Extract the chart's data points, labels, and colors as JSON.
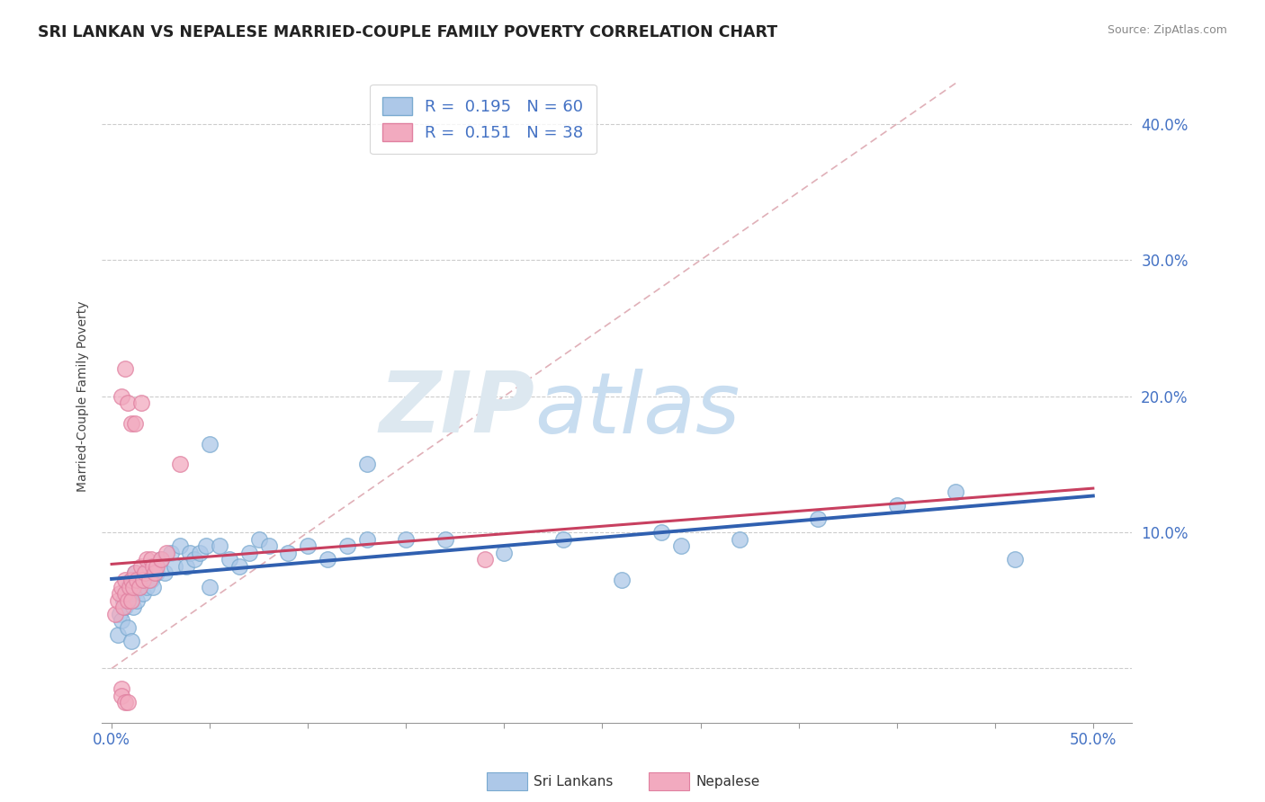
{
  "title": "SRI LANKAN VS NEPALESE MARRIED-COUPLE FAMILY POVERTY CORRELATION CHART",
  "source": "Source: ZipAtlas.com",
  "ylabel": "Married-Couple Family Poverty",
  "xlim": [
    -0.005,
    0.52
  ],
  "ylim": [
    -0.04,
    0.44
  ],
  "yticks": [
    0.0,
    0.1,
    0.2,
    0.3,
    0.4
  ],
  "ytick_labels": [
    "",
    "10.0%",
    "20.0%",
    "30.0%",
    "40.0%"
  ],
  "sri_R": 0.195,
  "sri_N": 60,
  "nep_R": 0.151,
  "nep_N": 38,
  "sri_color": "#adc8e8",
  "nep_color": "#f2aabf",
  "sri_edge_color": "#7aaad0",
  "nep_edge_color": "#e080a0",
  "sri_line_color": "#3060b0",
  "nep_line_color": "#c84060",
  "diag_line_color": "#e0b0b8",
  "watermark_color": "#dde8f0",
  "background_color": "#ffffff",
  "sri_x": [
    0.003,
    0.004,
    0.005,
    0.006,
    0.007,
    0.008,
    0.008,
    0.009,
    0.01,
    0.01,
    0.011,
    0.011,
    0.012,
    0.013,
    0.014,
    0.015,
    0.016,
    0.017,
    0.018,
    0.019,
    0.02,
    0.021,
    0.022,
    0.023,
    0.025,
    0.027,
    0.03,
    0.032,
    0.035,
    0.038,
    0.04,
    0.042,
    0.045,
    0.048,
    0.05,
    0.055,
    0.06,
    0.065,
    0.07,
    0.075,
    0.08,
    0.09,
    0.1,
    0.11,
    0.12,
    0.13,
    0.15,
    0.17,
    0.2,
    0.23,
    0.26,
    0.29,
    0.32,
    0.36,
    0.4,
    0.43,
    0.46,
    0.05,
    0.13,
    0.28
  ],
  "sri_y": [
    0.025,
    0.04,
    0.035,
    0.05,
    0.045,
    0.06,
    0.03,
    0.055,
    0.065,
    0.02,
    0.045,
    0.055,
    0.07,
    0.05,
    0.06,
    0.065,
    0.055,
    0.07,
    0.06,
    0.075,
    0.065,
    0.06,
    0.075,
    0.07,
    0.08,
    0.07,
    0.085,
    0.075,
    0.09,
    0.075,
    0.085,
    0.08,
    0.085,
    0.09,
    0.06,
    0.09,
    0.08,
    0.075,
    0.085,
    0.095,
    0.09,
    0.085,
    0.09,
    0.08,
    0.09,
    0.095,
    0.095,
    0.095,
    0.085,
    0.095,
    0.065,
    0.09,
    0.095,
    0.11,
    0.12,
    0.13,
    0.08,
    0.165,
    0.15,
    0.1
  ],
  "nep_x": [
    0.002,
    0.003,
    0.004,
    0.005,
    0.006,
    0.007,
    0.007,
    0.008,
    0.009,
    0.01,
    0.01,
    0.011,
    0.012,
    0.013,
    0.014,
    0.015,
    0.016,
    0.017,
    0.018,
    0.019,
    0.02,
    0.021,
    0.022,
    0.023,
    0.025,
    0.028,
    0.005,
    0.007,
    0.008,
    0.01,
    0.012,
    0.015,
    0.035,
    0.19,
    0.005,
    0.005,
    0.007,
    0.008
  ],
  "nep_y": [
    0.04,
    0.05,
    0.055,
    0.06,
    0.045,
    0.055,
    0.065,
    0.05,
    0.06,
    0.05,
    0.065,
    0.06,
    0.07,
    0.065,
    0.06,
    0.075,
    0.065,
    0.07,
    0.08,
    0.065,
    0.08,
    0.075,
    0.07,
    0.075,
    0.08,
    0.085,
    0.2,
    0.22,
    0.195,
    0.18,
    0.18,
    0.195,
    0.15,
    0.08,
    -0.015,
    -0.02,
    -0.025,
    -0.025
  ]
}
